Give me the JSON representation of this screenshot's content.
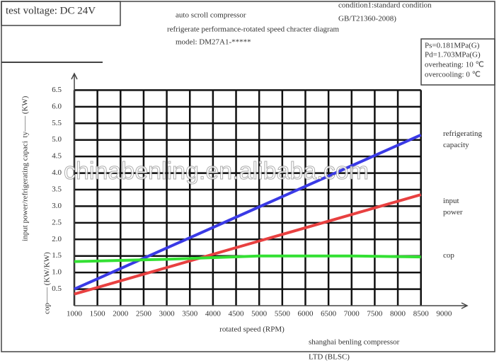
{
  "chart_data": {
    "type": "line",
    "header": {
      "voltage": "test voltage: DC 24V",
      "title_lines": [
        "auto scroll compressor",
        "refrigerate performance-rotated speed chracter diagram",
        "model: DM27A1-*****"
      ],
      "condition_lines": [
        "condition1:standard condition",
        "GB/T21360-2008)"
      ]
    },
    "conditions": [
      "Ps=0.181MPa(G)",
      "Pd=1.703MPa(G)",
      "overheating: 10 ℃",
      "overcooling: 0 ℃"
    ],
    "ylabel_lines": [
      "input power/refrigerating capaci",
      "ty—— (KW)"
    ],
    "y2label": "cop—— (KW/KW)",
    "xlabel": "rotated speed (RPM)",
    "footer_lines": [
      "shanghai benling compressor",
      "LTD (BLSC)"
    ],
    "watermark": "chinabenling.en.alibaba.com",
    "x": [
      1000,
      3000,
      5000,
      7000,
      8500
    ],
    "series": [
      {
        "name": "refrigerating capacity",
        "color": "#3a3ae6",
        "values": [
          0.5,
          1.74,
          2.98,
          4.22,
          5.15
        ]
      },
      {
        "name": "input power",
        "color": "#e84040",
        "values": [
          0.35,
          1.15,
          1.95,
          2.75,
          3.35
        ]
      },
      {
        "name": "cop",
        "color": "#33e033",
        "values": [
          1.33,
          1.4,
          1.5,
          1.5,
          1.47
        ]
      }
    ],
    "xlim": [
      1000,
      9500
    ],
    "ylim": [
      0,
      7
    ],
    "xticks": [
      1000,
      1500,
      2000,
      2500,
      3000,
      3500,
      4000,
      4500,
      5000,
      5500,
      6000,
      6500,
      7000,
      7500,
      8000,
      8500,
      9000
    ],
    "yticks": [
      0.5,
      {
        "value": 1,
        "label": "1.0"
      },
      1.5,
      {
        "value": 2,
        "label": "2.0"
      },
      2.5,
      {
        "value": 3,
        "label": "3.0"
      },
      3.5,
      {
        "value": 4,
        "label": "4.0"
      },
      4.5,
      {
        "value": 5,
        "label": "5.0"
      },
      5.5,
      {
        "value": 6,
        "label": "6.0"
      },
      6.5
    ],
    "grid": true
  }
}
